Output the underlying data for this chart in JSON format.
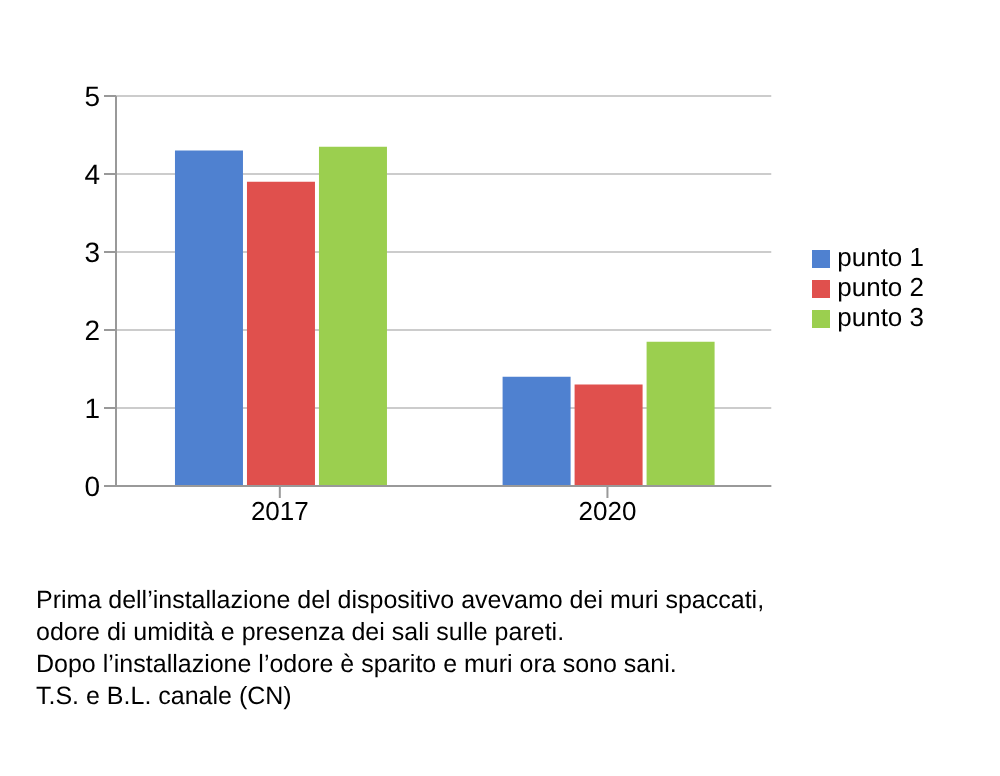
{
  "chart_data": {
    "type": "bar",
    "categories": [
      "2017",
      "2020"
    ],
    "series": [
      {
        "name": "punto 1",
        "color": "#4f81d0",
        "values": [
          4.3,
          1.4
        ]
      },
      {
        "name": "punto 2",
        "color": "#e0504d",
        "values": [
          3.9,
          1.3
        ]
      },
      {
        "name": "punto 3",
        "color": "#9bcf4f",
        "values": [
          4.35,
          1.85
        ]
      }
    ],
    "ylim": [
      0,
      5
    ],
    "yticks": [
      0,
      1,
      2,
      3,
      4,
      5
    ],
    "grid": "y",
    "legend": "right",
    "annotations": [
      "Prima dell’installazione del dispositivo avevamo dei muri spaccati,",
      "odore di umidità e presenza dei sali sulle pareti.",
      "Dopo l’installazione l’odore è sparito e muri ora sono sani.",
      "T.S. e B.L. canale (CN)"
    ]
  }
}
